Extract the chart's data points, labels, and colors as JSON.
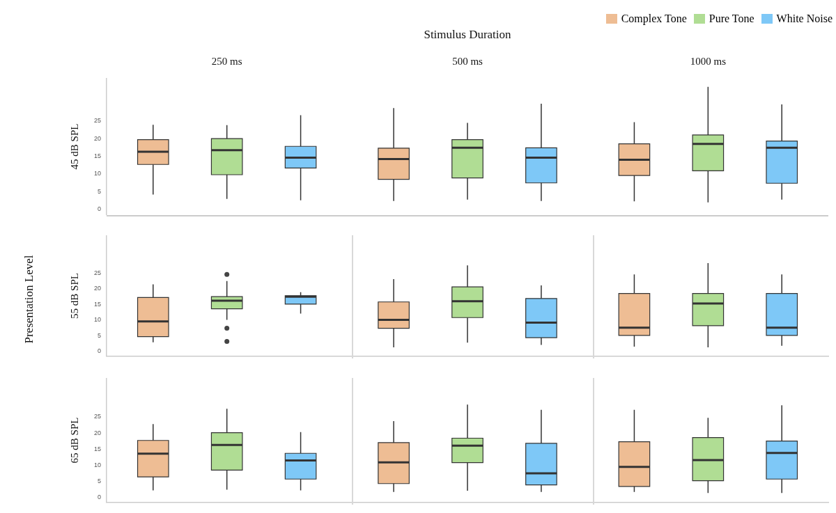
{
  "chart_data": [
    {
      "type": "box",
      "xlabel": "Stimulus Duration",
      "ylabel": "45 dB SPL",
      "categories": [
        "250 ms",
        "500 ms",
        "1000 ms"
      ],
      "ylim": [
        -1.5,
        37
      ],
      "yticks": [
        0,
        5,
        10,
        15,
        20,
        25
      ],
      "legend": "top right",
      "annotations": [
        "Presentation Level"
      ],
      "series": [
        {
          "name": "Complex Tone",
          "color": "#eebd94",
          "boxes": [
            {
              "low": 4.2,
              "q1": 12.7,
              "median": 16.3,
              "q3": 19.7,
              "high": 23.9
            },
            {
              "low": 2.4,
              "q1": 8.5,
              "median": 14.2,
              "q3": 17.3,
              "high": 28.6
            },
            {
              "low": 2.3,
              "q1": 9.6,
              "median": 14.0,
              "q3": 18.5,
              "high": 24.6
            }
          ]
        },
        {
          "name": "Pure Tone",
          "color": "#b0dd94",
          "boxes": [
            {
              "low": 3.0,
              "q1": 9.8,
              "median": 16.7,
              "q3": 20.0,
              "high": 23.8
            },
            {
              "low": 2.8,
              "q1": 8.9,
              "median": 17.4,
              "q3": 19.7,
              "high": 24.4
            },
            {
              "low": 2.0,
              "q1": 10.9,
              "median": 18.5,
              "q3": 21.0,
              "high": 34.6
            }
          ]
        },
        {
          "name": "White Noise",
          "color": "#7ec8f7",
          "boxes": [
            {
              "low": 2.6,
              "q1": 11.7,
              "median": 14.6,
              "q3": 17.8,
              "high": 26.6
            },
            {
              "low": 2.4,
              "q1": 7.5,
              "median": 14.6,
              "q3": 17.4,
              "high": 29.8
            },
            {
              "low": 2.8,
              "q1": 7.4,
              "median": 17.4,
              "q3": 19.3,
              "high": 29.6
            }
          ]
        }
      ]
    },
    {
      "type": "box",
      "ylabel": "55 dB SPL",
      "categories": [
        null,
        null,
        null
      ],
      "ylim": [
        -1.5,
        37
      ],
      "yticks": [
        0,
        5,
        10,
        15,
        20,
        25
      ],
      "tick_labels": "y",
      "series": [
        {
          "color": "#eebd94",
          "boxes": [
            {
              "low": 2.9,
              "q1": 4.7,
              "median": 9.6,
              "q3": 17.2,
              "high": 21.4
            },
            {
              "low": 1.3,
              "q1": 7.4,
              "median": 10.1,
              "q3": 15.8,
              "high": 23.1
            },
            {
              "low": 1.5,
              "q1": 5.1,
              "median": 7.6,
              "q3": 18.5,
              "high": 24.6
            }
          ]
        },
        {
          "color": "#b0dd94",
          "boxes": [
            {
              "low": 10.1,
              "q1": 13.6,
              "median": 16.2,
              "q3": 17.5,
              "high": 22.5,
              "outliers": [
                24.6,
                7.4,
                3.2
              ]
            },
            {
              "low": 2.8,
              "q1": 10.8,
              "median": 16.0,
              "q3": 20.6,
              "high": 27.5
            },
            {
              "low": 1.3,
              "q1": 8.2,
              "median": 15.3,
              "q3": 18.5,
              "high": 28.2
            }
          ]
        },
        {
          "color": "#7ec8f7",
          "boxes": [
            {
              "low": 12.1,
              "q1": 15.1,
              "median": 17.5,
              "q3": 17.8,
              "high": 18.9
            },
            {
              "low": 2.1,
              "q1": 4.4,
              "median": 9.2,
              "q3": 16.9,
              "high": 21.1
            },
            {
              "low": 1.8,
              "q1": 5.1,
              "median": 7.6,
              "q3": 18.5,
              "high": 24.6
            }
          ]
        }
      ]
    },
    {
      "type": "box",
      "ylabel": "65 dB SPL",
      "categories": [
        null,
        null,
        null
      ],
      "ylim": [
        -1.5,
        37
      ],
      "yticks": [
        0,
        5,
        10,
        15,
        20,
        25
      ],
      "tick_labels": "y",
      "series": [
        {
          "color": "#eebd94",
          "boxes": [
            {
              "low": 2.2,
              "q1": 6.4,
              "median": 13.6,
              "q3": 17.7,
              "high": 22.8
            },
            {
              "low": 1.7,
              "q1": 4.3,
              "median": 10.9,
              "q3": 17.0,
              "high": 23.7
            },
            {
              "low": 1.7,
              "q1": 3.4,
              "median": 9.5,
              "q3": 17.3,
              "high": 27.2
            }
          ]
        },
        {
          "color": "#b0dd94",
          "boxes": [
            {
              "low": 2.4,
              "q1": 8.5,
              "median": 16.3,
              "q3": 20.1,
              "high": 27.5
            },
            {
              "low": 2.1,
              "q1": 10.8,
              "median": 16.1,
              "q3": 18.4,
              "high": 28.8
            },
            {
              "low": 1.4,
              "q1": 5.2,
              "median": 11.6,
              "q3": 18.6,
              "high": 24.7
            }
          ]
        },
        {
          "color": "#7ec8f7",
          "boxes": [
            {
              "low": 2.2,
              "q1": 5.7,
              "median": 11.5,
              "q3": 13.7,
              "high": 20.3
            },
            {
              "low": 1.7,
              "q1": 3.9,
              "median": 7.5,
              "q3": 16.8,
              "high": 27.2
            },
            {
              "low": 1.4,
              "q1": 5.7,
              "median": 13.8,
              "q3": 17.5,
              "high": 28.6
            }
          ]
        }
      ]
    }
  ]
}
